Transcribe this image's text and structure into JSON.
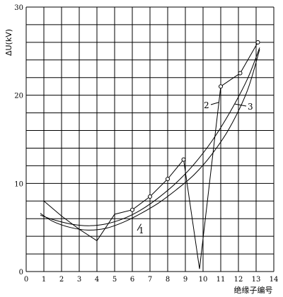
{
  "chart_data": {
    "type": "line",
    "xlabel": "绝缘子编号",
    "ylabel": "ΔU(kV)",
    "xlim": [
      0,
      14
    ],
    "ylim": [
      0,
      30
    ],
    "x_ticks": [
      0,
      1,
      2,
      3,
      4,
      5,
      6,
      7,
      8,
      9,
      10,
      11,
      12,
      13,
      14
    ],
    "y_ticks": [
      0,
      10,
      20,
      30
    ],
    "grid": true,
    "series": [
      {
        "name": "1",
        "style": "smooth",
        "points": [
          [
            0.8,
            6.6
          ],
          [
            1.5,
            5.7
          ],
          [
            2.5,
            5.0
          ],
          [
            3.5,
            4.7
          ],
          [
            4.5,
            4.9
          ],
          [
            5.5,
            5.6
          ],
          [
            6.5,
            6.6
          ],
          [
            7.5,
            7.8
          ],
          [
            8.5,
            9.3
          ],
          [
            9.5,
            11.0
          ],
          [
            10.5,
            13.3
          ],
          [
            11.5,
            16.3
          ],
          [
            12.5,
            20.5
          ],
          [
            13.2,
            25.2
          ]
        ]
      },
      {
        "name": "2",
        "style": "polyline-markers",
        "points": [
          [
            1.0,
            8.0
          ],
          [
            2.0,
            6.3
          ],
          [
            3.0,
            4.8
          ],
          [
            4.0,
            3.5
          ],
          [
            5.0,
            6.5
          ],
          [
            6.0,
            7.0
          ],
          [
            7.0,
            8.5
          ],
          [
            8.0,
            10.5
          ],
          [
            8.9,
            12.7
          ],
          [
            9.8,
            0.3
          ],
          [
            11.0,
            21.0
          ],
          [
            12.1,
            22.5
          ],
          [
            13.1,
            26.0
          ]
        ]
      },
      {
        "name": "3",
        "style": "smooth",
        "points": [
          [
            0.8,
            6.4
          ],
          [
            1.5,
            5.9
          ],
          [
            2.5,
            5.4
          ],
          [
            3.5,
            5.2
          ],
          [
            4.5,
            5.4
          ],
          [
            5.5,
            6.0
          ],
          [
            6.5,
            7.0
          ],
          [
            7.5,
            8.4
          ],
          [
            8.5,
            10.1
          ],
          [
            9.5,
            12.2
          ],
          [
            10.5,
            14.8
          ],
          [
            11.5,
            18.0
          ],
          [
            12.5,
            21.8
          ],
          [
            13.2,
            25.4
          ]
        ]
      }
    ]
  }
}
